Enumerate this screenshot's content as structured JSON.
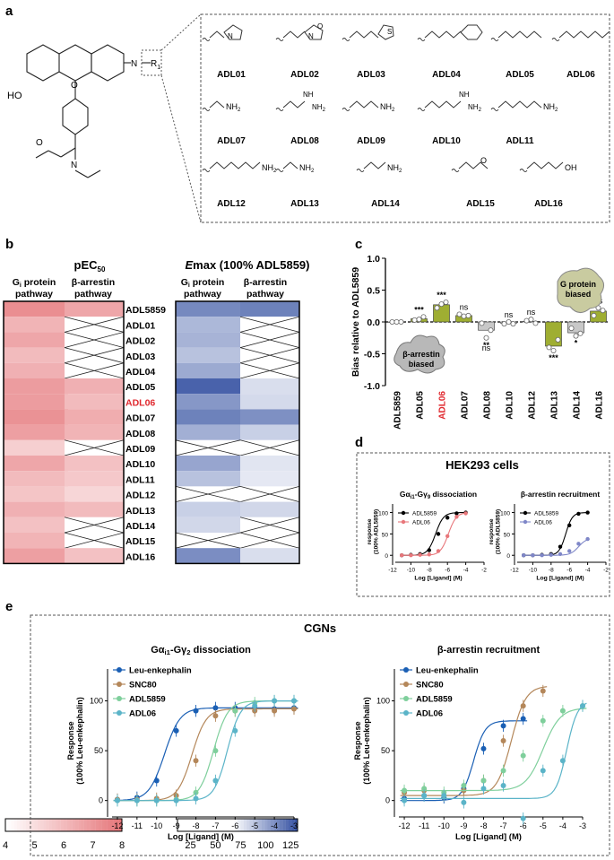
{
  "panels": {
    "a": "a",
    "b": "b",
    "c": "c",
    "d": "d",
    "e": "e"
  },
  "panel_a": {
    "scaffold_labels": {
      "ho": "HO",
      "r1": "R",
      "r1_sub": "1",
      "n": "N",
      "o": "O"
    },
    "compounds": [
      "ADL01",
      "ADL02",
      "ADL03",
      "ADL04",
      "ADL05",
      "ADL06",
      "ADL07",
      "ADL08",
      "ADL09",
      "ADL10",
      "ADL11",
      "ADL12",
      "ADL13",
      "ADL14",
      "ADL15",
      "ADL16"
    ],
    "substituents": [
      "pyrrolidinylethyl",
      "morpholinylethyl",
      "thienylmethyl",
      "benzyl",
      "propyl",
      "butyl",
      "aminoethyl",
      "guanidinoethyl",
      "aminopropyl",
      "guanidinopropyl",
      "aminobutyl",
      "aminopentyl",
      "aminohexyl",
      "aminoheptyl",
      "methoxyethyl",
      "hydroxypropyl"
    ],
    "atom_text": {
      "N": "N",
      "O": "O",
      "S": "S",
      "NH2": "NH",
      "NH2_sub": "2",
      "NH": "NH",
      "OH": "OH",
      "H": "H"
    }
  },
  "panel_b": {
    "pec50_title": "pEC",
    "pec50_sub": "50",
    "emax_title": "Emax (100% ADL5859)",
    "emax_title_e": "E",
    "emax_title_rest": "max (100% ADL5859)",
    "col_gi_1": "G",
    "col_gi_sub": "i",
    "col_gi_2": " protein",
    "col_gi_3": "pathway",
    "col_arr_1": "β-arrestin",
    "col_arr_2": "pathway",
    "rows": [
      "ADL5859",
      "ADL01",
      "ADL02",
      "ADL03",
      "ADL04",
      "ADL05",
      "ADL06",
      "ADL07",
      "ADL08",
      "ADL09",
      "ADL10",
      "ADL11",
      "ADL12",
      "ADL13",
      "ADL14",
      "ADL15",
      "ADL16"
    ],
    "highlight_row": "ADL06",
    "highlight_color": "#e0282e",
    "pec50_gi": [
      7.3,
      6.2,
      6.6,
      6.0,
      6.3,
      6.9,
      6.9,
      7.2,
      6.8,
      5.4,
      6.6,
      6.0,
      5.7,
      6.3,
      5.8,
      6.2,
      6.8
    ],
    "pec50_arr": [
      6.6,
      null,
      null,
      null,
      null,
      6.3,
      6.0,
      6.4,
      6.2,
      null,
      5.8,
      5.6,
      5.2,
      6.0,
      null,
      null,
      5.8
    ],
    "emax_gi": [
      95,
      62,
      65,
      55,
      72,
      122,
      85,
      100,
      68,
      null,
      75,
      55,
      null,
      45,
      40,
      null,
      92
    ],
    "emax_arr": [
      100,
      null,
      null,
      null,
      null,
      35,
      38,
      90,
      45,
      null,
      30,
      28,
      null,
      40,
      null,
      null,
      35
    ],
    "pec50_scale": {
      "min": 4,
      "max": 8,
      "ticks": [
        "4",
        "5",
        "6",
        "7",
        "8"
      ],
      "color": "#e46f73"
    },
    "emax_scale": {
      "min": 12,
      "max": 132,
      "ticks": [
        "25",
        "50",
        "75",
        "100",
        "125"
      ],
      "color": "#2e4b9e"
    }
  },
  "panel_c": {
    "chart_data": {
      "type": "bar",
      "ylabel": "Bias relative to ADL5859",
      "ylim": [
        -1.0,
        1.0
      ],
      "yticks": [
        "-1.0",
        "-0.5",
        "0.0",
        "0.5",
        "1.0"
      ],
      "categories": [
        "ADL5859",
        "ADL05",
        "ADL06",
        "ADL07",
        "ADL08",
        "ADL10",
        "ADL12",
        "ADL13",
        "ADL14",
        "ADL16"
      ],
      "values": [
        0.0,
        0.05,
        0.27,
        0.1,
        -0.13,
        -0.02,
        0.01,
        -0.38,
        -0.17,
        0.17
      ],
      "points": [
        [
          0,
          0,
          0
        ],
        [
          0.03,
          0.04,
          0.08
        ],
        [
          0.22,
          0.28,
          0.31
        ],
        [
          0.12,
          0.09,
          0.1
        ],
        [
          -0.02,
          -0.25,
          -0.13
        ],
        [
          -0.03,
          0.0,
          -0.03
        ],
        [
          0.02,
          0.04,
          -0.02
        ],
        [
          -0.4,
          -0.45,
          -0.28
        ],
        [
          -0.1,
          -0.22,
          -0.18
        ],
        [
          0.1,
          0.22,
          0.18
        ]
      ],
      "significance": [
        "",
        "***",
        "***",
        "ns",
        "**",
        "ns",
        "ns",
        "***",
        "*",
        "ns"
      ],
      "sig_below": [
        false,
        false,
        false,
        false,
        true,
        false,
        false,
        true,
        true,
        false
      ],
      "sig_extra": [
        "",
        "",
        "",
        "",
        "ns",
        "",
        "",
        "",
        "",
        ""
      ],
      "bar_colors": [
        "#c8c8c8",
        "#9fae32",
        "#9fae32",
        "#9fae32",
        "#c8c8c8",
        "#c8c8c8",
        "#c8c8c8",
        "#9fae32",
        "#c8c8c8",
        "#9fae32"
      ],
      "highlight_category": "ADL06",
      "annotation_g": "G protein",
      "annotation_g2": "biased",
      "annotation_b": "β-arrestin",
      "annotation_b2": "biased"
    }
  },
  "panel_d": {
    "title": "HEK293 cells",
    "chart_data": [
      {
        "type": "line",
        "title": "Gα",
        "title_full": "Gαi1-Gγ9 dissociation",
        "title_a": "Gα",
        "title_a_sub": "i1",
        "title_b": "-Gγ",
        "title_b_sub": "9",
        "title_c": " dissociation",
        "ylabel": "response",
        "ylabel2": "(100% ADL5859)",
        "xlabel": "Log [Ligand] (M)",
        "xlim": [
          -12,
          -2
        ],
        "ylim": [
          -10,
          120
        ],
        "xticks": [
          "-12",
          "-10",
          "-8",
          "-6",
          "-4",
          "-2"
        ],
        "yticks": [
          "0",
          "50",
          "100"
        ],
        "series": [
          {
            "name": "ADL5859",
            "color": "#000000",
            "logEC50": -7.3,
            "top": 100,
            "bottom": 0,
            "hill": 1.0,
            "x": [
              -11,
              -10,
              -9,
              -8,
              -7,
              -6,
              -5,
              -4
            ],
            "y": [
              0,
              1,
              3,
              12,
              50,
              88,
              98,
              100
            ]
          },
          {
            "name": "ADL06",
            "color": "#e8777b",
            "logEC50": -5.9,
            "top": 100,
            "bottom": 0,
            "hill": 1.0,
            "x": [
              -11,
              -10,
              -9,
              -8,
              -7,
              -6,
              -5,
              -4
            ],
            "y": [
              0,
              0,
              1,
              2,
              10,
              45,
              90,
              98
            ]
          }
        ]
      },
      {
        "type": "line",
        "title": "β-arrestin recruitment",
        "ylabel": "response",
        "ylabel2": "(100% ADL5859)",
        "xlabel": "Log [Ligand] (M)",
        "xlim": [
          -12,
          -2
        ],
        "ylim": [
          -10,
          120
        ],
        "xticks": [
          "-12",
          "-10",
          "-8",
          "-6",
          "-4",
          "-2"
        ],
        "yticks": [
          "0",
          "50",
          "100"
        ],
        "series": [
          {
            "name": "ADL5859",
            "color": "#000000",
            "logEC50": -6.4,
            "top": 100,
            "bottom": 0,
            "hill": 1.2,
            "x": [
              -11,
              -10,
              -9,
              -8,
              -7,
              -6,
              -5,
              -4
            ],
            "y": [
              0,
              0,
              1,
              3,
              20,
              70,
              97,
              100
            ]
          },
          {
            "name": "ADL06",
            "color": "#7f87c8",
            "logEC50": -5.0,
            "top": 40,
            "bottom": 0,
            "hill": 1.0,
            "x": [
              -11,
              -10,
              -9,
              -8,
              -7,
              -6,
              -5,
              -4
            ],
            "y": [
              0,
              0,
              0,
              1,
              3,
              10,
              27,
              38
            ]
          }
        ]
      }
    ]
  },
  "panel_e": {
    "title": "CGNs",
    "chart_data": [
      {
        "type": "line",
        "title_a": "Gα",
        "title_a_sub": "i1",
        "title_b": "-Gγ",
        "title_b_sub": "2",
        "title_c": " dissociation",
        "ylabel": "Response",
        "ylabel2": "(100% Leu-enkephalin)",
        "xlabel": "Log [Ligand] (M)",
        "xlim": [
          -12.5,
          -3
        ],
        "ylim": [
          -12,
          132
        ],
        "xticks": [
          "-12",
          "-11",
          "-10",
          "-9",
          "-8",
          "-7",
          "-6",
          "-5",
          "-4",
          "-3"
        ],
        "yticks": [
          "0",
          "50",
          "100"
        ],
        "series": [
          {
            "name": "Leu-enkephalin",
            "color": "#1a5fb4",
            "logEC50": -9.6,
            "top": 93,
            "bottom": 0,
            "hill": 1.1,
            "x": [
              -12,
              -11,
              -10,
              -9,
              -8,
              -7,
              -6,
              -5,
              -4,
              -3
            ],
            "y": [
              1,
              3,
              20,
              70,
              90,
              93,
              93,
              93,
              92,
              93
            ]
          },
          {
            "name": "SNC80",
            "color": "#b4875a",
            "logEC50": -8.2,
            "top": 92,
            "bottom": 0,
            "hill": 1.2,
            "x": [
              -12,
              -11,
              -10,
              -9,
              -8,
              -7,
              -6,
              -5,
              -4,
              -3
            ],
            "y": [
              1,
              1,
              2,
              5,
              40,
              85,
              90,
              90,
              90,
              92
            ]
          },
          {
            "name": "ADL5859",
            "color": "#7fcf9c",
            "logEC50": -7.1,
            "top": 100,
            "bottom": 0,
            "hill": 1.2,
            "x": [
              -12,
              -11,
              -10,
              -9,
              -8,
              -7,
              -6,
              -5,
              -4,
              -3
            ],
            "y": [
              0,
              0,
              0,
              1,
              8,
              50,
              90,
              98,
              100,
              100
            ]
          },
          {
            "name": "ADL06",
            "color": "#5bb4c8",
            "logEC50": -6.4,
            "top": 100,
            "bottom": 0,
            "hill": 1.3,
            "x": [
              -12,
              -11,
              -10,
              -9,
              -8,
              -7,
              -6,
              -5,
              -4,
              -3
            ],
            "y": [
              0,
              0,
              0,
              0,
              2,
              20,
              70,
              95,
              100,
              100
            ]
          }
        ]
      },
      {
        "type": "line",
        "title": "β-arrestin recruitment",
        "ylabel": "Response",
        "ylabel2": "(100% Leu-enkephalin)",
        "xlabel": "Log [Ligand] (M)",
        "xlim": [
          -12.5,
          -3
        ],
        "ylim": [
          -12,
          132
        ],
        "xticks": [
          "-12",
          "-11",
          "-10",
          "-9",
          "-8",
          "-7",
          "-6",
          "-5",
          "-4",
          "-3"
        ],
        "yticks": [
          "0",
          "50",
          "100"
        ],
        "series": [
          {
            "name": "Leu-enkephalin",
            "color": "#1a5fb4",
            "logEC50": -8.5,
            "top": 80,
            "bottom": 0,
            "hill": 1.5,
            "x": [
              -12,
              -11,
              -10,
              -9,
              -8,
              -7,
              -6
            ],
            "y": [
              2,
              5,
              3,
              12,
              52,
              75,
              82
            ]
          },
          {
            "name": "SNC80",
            "color": "#b4875a",
            "logEC50": -6.6,
            "top": 115,
            "bottom": 5,
            "hill": 1.2,
            "x": [
              -12,
              -11,
              -10,
              -9,
              -8,
              -7,
              -6,
              -5
            ],
            "y": [
              8,
              10,
              5,
              10,
              20,
              60,
              95,
              110
            ]
          },
          {
            "name": "ADL5859",
            "color": "#7fcf9c",
            "logEC50": -5.0,
            "top": 93,
            "bottom": 10,
            "hill": 1.0,
            "x": [
              -12,
              -11,
              -10,
              -9,
              -8,
              -7,
              -6,
              -5,
              -4,
              -3
            ],
            "y": [
              10,
              12,
              8,
              15,
              20,
              30,
              45,
              80,
              90,
              95
            ]
          },
          {
            "name": "ADL06",
            "color": "#5bb4c8",
            "logEC50": -3.8,
            "top": 100,
            "bottom": 2,
            "hill": 1.6,
            "x": [
              -12,
              -11,
              -10,
              -9,
              -8,
              -7,
              -6,
              -5,
              -4,
              -3
            ],
            "y": [
              0,
              5,
              5,
              -2,
              12,
              15,
              -18,
              30,
              40,
              95
            ]
          }
        ]
      }
    ]
  }
}
